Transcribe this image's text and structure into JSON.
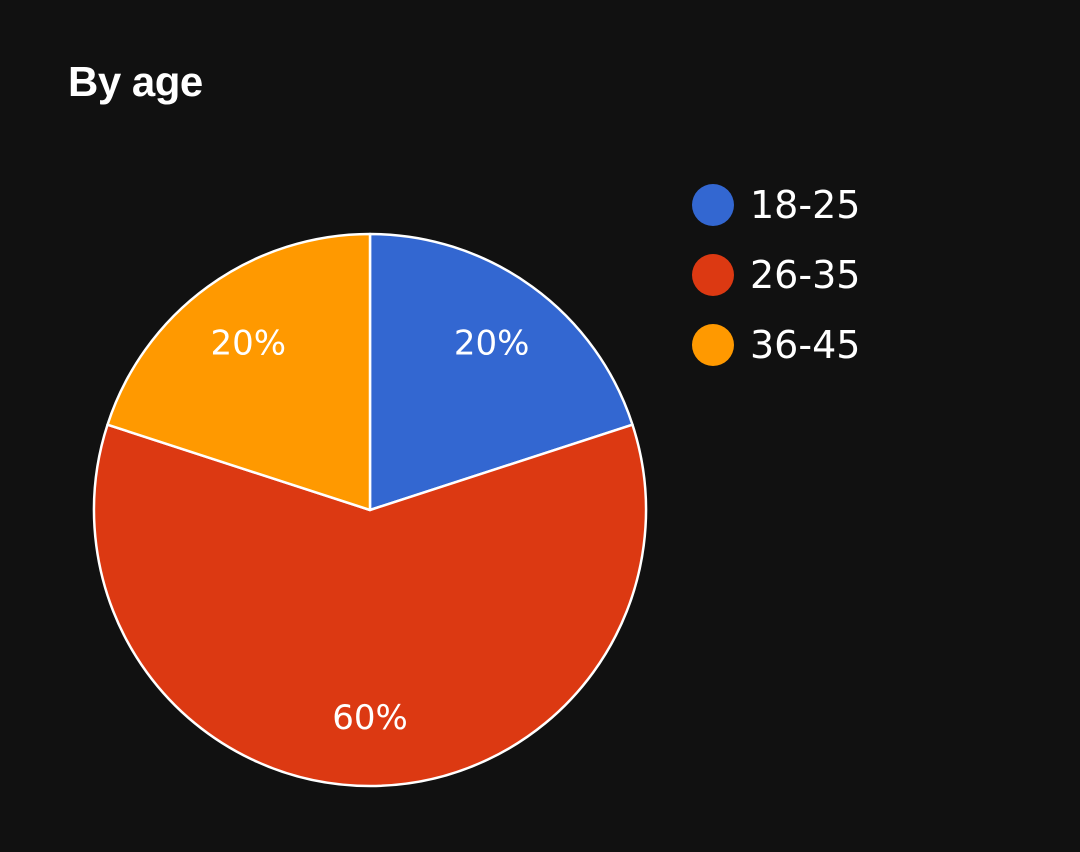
{
  "chart_data": {
    "type": "pie",
    "title": "By age",
    "categories": [
      "18-25",
      "26-35",
      "36-45"
    ],
    "values": [
      20,
      60,
      20
    ],
    "labels": [
      "20%",
      "60%",
      "20%"
    ],
    "colors": [
      "#3367d1",
      "#dc3912",
      "#ff9900"
    ],
    "legend_position": "right",
    "start_angle_deg": 0,
    "direction": "clockwise"
  }
}
